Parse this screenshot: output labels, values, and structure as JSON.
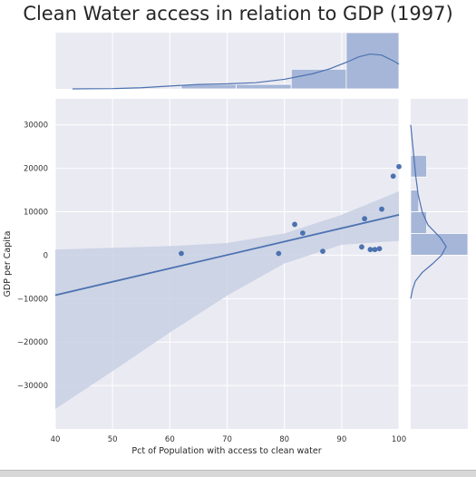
{
  "chart_data": {
    "type": "scatter",
    "title": "Clean Water access in relation to GDP (1997)",
    "xlabel": "Pct of Population with access to clean water",
    "ylabel": "GDP per Capita",
    "xlim": [
      40,
      100
    ],
    "ylim": [
      -40000,
      36000
    ],
    "x_ticks": [
      40,
      50,
      60,
      70,
      80,
      90,
      100
    ],
    "y_ticks": [
      -30000,
      -20000,
      -10000,
      0,
      10000,
      20000,
      30000
    ],
    "grid": true,
    "points": [
      {
        "x": 62,
        "y": 400
      },
      {
        "x": 79,
        "y": 400
      },
      {
        "x": 81.8,
        "y": 7100
      },
      {
        "x": 83.2,
        "y": 5100
      },
      {
        "x": 86.7,
        "y": 900
      },
      {
        "x": 93.5,
        "y": 1900
      },
      {
        "x": 94,
        "y": 8400
      },
      {
        "x": 95,
        "y": 1300
      },
      {
        "x": 95.8,
        "y": 1300
      },
      {
        "x": 96.6,
        "y": 1500
      },
      {
        "x": 97,
        "y": 10600
      },
      {
        "x": 99,
        "y": 18200
      },
      {
        "x": 100,
        "y": 20400
      }
    ],
    "regression": {
      "x": [
        40,
        100
      ],
      "y": [
        -9200,
        9300
      ]
    },
    "confidence_band": {
      "x": [
        40,
        50,
        60,
        70,
        80,
        90,
        100
      ],
      "upper": [
        1300,
        1700,
        2100,
        2800,
        5000,
        9300,
        14700
      ],
      "lower": [
        -35400,
        -26700,
        -17800,
        -9300,
        -1900,
        2400,
        3300
      ]
    },
    "marginal_x": {
      "bins": [
        {
          "x0": 62,
          "x1": 71.6,
          "density": 0.08
        },
        {
          "x0": 71.6,
          "x1": 81.2,
          "density": 0.08
        },
        {
          "x0": 81.2,
          "x1": 90.8,
          "density": 0.35
        },
        {
          "x0": 90.8,
          "x1": 100.4,
          "density": 1.0
        }
      ],
      "kde": {
        "x": [
          43,
          50,
          55,
          60,
          65,
          70,
          75,
          80,
          85,
          88,
          91,
          93,
          95,
          97,
          99,
          100
        ],
        "y": [
          0.0,
          0.005,
          0.02,
          0.05,
          0.08,
          0.09,
          0.11,
          0.17,
          0.27,
          0.36,
          0.48,
          0.57,
          0.62,
          0.6,
          0.5,
          0.44
        ]
      }
    },
    "marginal_y": {
      "bins": [
        {
          "y0": 18000,
          "y1": 23000,
          "density": 0.28
        },
        {
          "y0": 10000,
          "y1": 15000,
          "density": 0.14
        },
        {
          "y0": 5000,
          "y1": 10000,
          "density": 0.28
        },
        {
          "y0": 0,
          "y1": 5000,
          "density": 1.0
        }
      ],
      "kde": {
        "y": [
          30000,
          26000,
          22000,
          18000,
          14000,
          10000,
          7000,
          4000,
          2000,
          0,
          -2000,
          -4000,
          -6000,
          -8000,
          -10000
        ],
        "x": [
          0.0,
          0.03,
          0.06,
          0.09,
          0.13,
          0.2,
          0.3,
          0.52,
          0.62,
          0.54,
          0.38,
          0.2,
          0.08,
          0.03,
          0.0
        ]
      }
    },
    "colors": {
      "point": "#4c72b0",
      "line": "#4c72b0",
      "band": "#c8d0e4",
      "bar": "#a6b6d8",
      "axes_bg": "#eaeaf2",
      "grid": "#ffffff"
    }
  }
}
